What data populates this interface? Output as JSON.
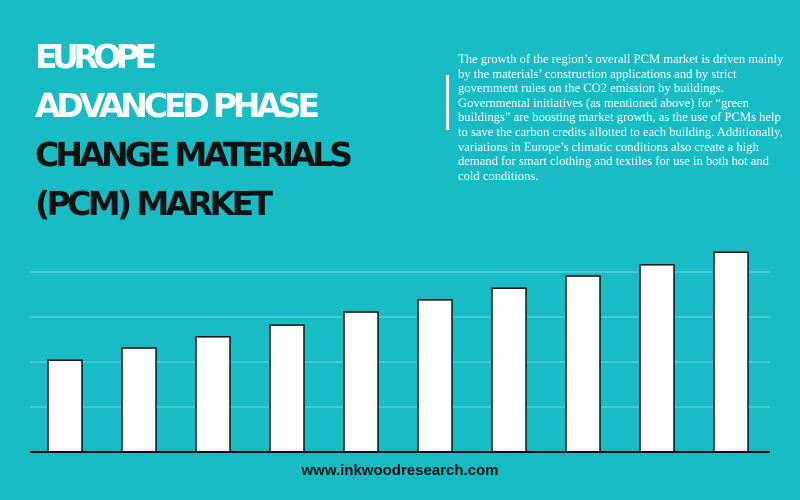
{
  "header": {
    "title_lines": [
      "EUROPE",
      "ADVANCED PHASE",
      "CHANGE MATERIALS",
      "(PCM) MARKET"
    ],
    "description": "The growth of the region’s overall PCM market is driven mainly by the materials’ construction applications and by strict government rules on the CO2 emission by buildings. Governmental initiatives (as mentioned above) for “green buildings” are boosting market growth, as the use of PCMs help to save the carbon credits allotted to each building. Additionally, variations in Europe’s climatic conditions also create a high demand for smart clothing and textiles for use in both hot and cold conditions."
  },
  "footer": "www.inkwoodresearch.com",
  "chart_data": {
    "type": "bar",
    "categories": [
      null,
      null,
      null,
      null,
      null,
      null,
      null,
      null,
      null,
      null
    ],
    "values": [
      2.04,
      2.31,
      2.56,
      2.82,
      3.11,
      3.38,
      3.64,
      3.91,
      4.16,
      4.44
    ],
    "color": "#ffffff",
    "ylim": [
      0,
      4.6
    ],
    "yticks": [
      0,
      1,
      2,
      3,
      4
    ],
    "grid": true
  }
}
